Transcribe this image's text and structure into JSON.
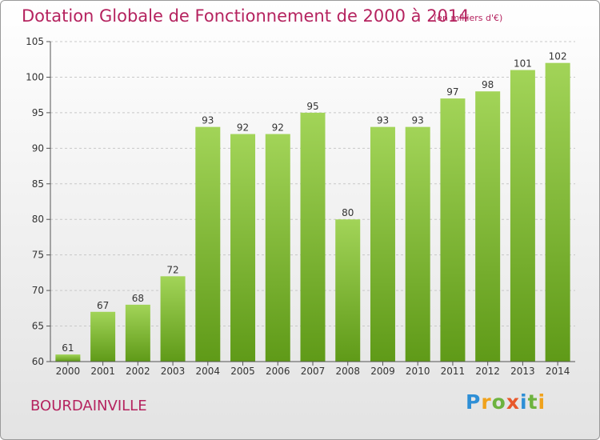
{
  "title": "Dotation Globale de Fonctionnement de 2000 à 2014",
  "subtitle": "(en milliers d'€)",
  "commune": "BOURDAINVILLE",
  "logo": {
    "text": "Proxiti",
    "letters": [
      {
        "char": "P",
        "color": "#2e8fd6"
      },
      {
        "char": "r",
        "color": "#f0a21c"
      },
      {
        "char": "o",
        "color": "#6db33f"
      },
      {
        "char": "x",
        "color": "#e8582b"
      },
      {
        "char": "i",
        "color": "#2e8fd6"
      },
      {
        "char": "t",
        "color": "#6db33f"
      },
      {
        "char": "i",
        "color": "#f0a21c"
      }
    ]
  },
  "colors": {
    "title": "#b5235f",
    "bar_light": "#9fd255",
    "bar_dark": "#5f9a18",
    "grid": "#c8c8c8",
    "axis": "#555555",
    "text": "#333333"
  },
  "chart_data": {
    "type": "bar",
    "title": "Dotation Globale de Fonctionnement de 2000 à 2014",
    "subtitle": "(en milliers d'€)",
    "xlabel": "",
    "ylabel": "",
    "categories": [
      "2000",
      "2001",
      "2002",
      "2003",
      "2004",
      "2005",
      "2006",
      "2007",
      "2008",
      "2009",
      "2010",
      "2011",
      "2012",
      "2013",
      "2014"
    ],
    "values": [
      61,
      67,
      68,
      72,
      93,
      92,
      92,
      95,
      80,
      93,
      93,
      97,
      98,
      101,
      102
    ],
    "ylim": [
      60,
      105
    ],
    "yticks": [
      60,
      65,
      70,
      75,
      80,
      85,
      90,
      95,
      100,
      105
    ],
    "grid": true,
    "legend": "none",
    "data_labels": true
  }
}
